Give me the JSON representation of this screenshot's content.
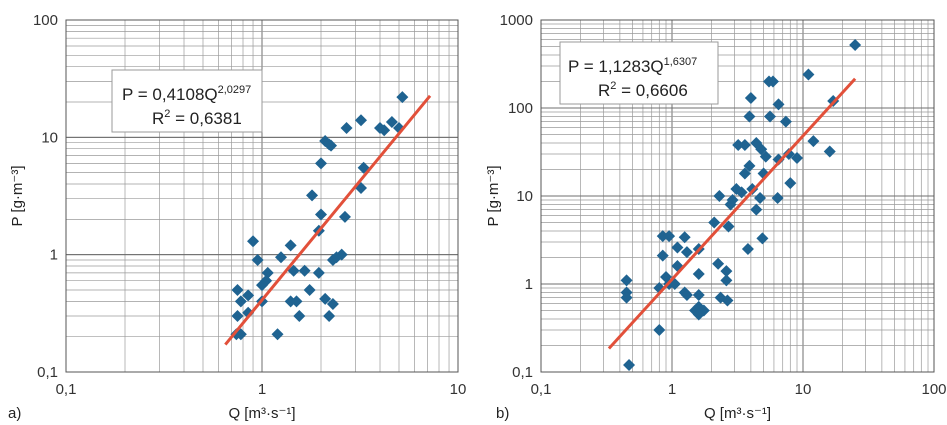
{
  "panel_labels": [
    "a)",
    "b)"
  ],
  "chart_data": [
    {
      "type": "scatter",
      "panel": "a)",
      "xlabel": "Q [m³·s⁻¹]",
      "ylabel": "P [g·m⁻³]",
      "x_scale": "log",
      "y_scale": "log",
      "xlim": [
        0.1,
        10
      ],
      "ylim": [
        0.1,
        100
      ],
      "x_ticks": [
        "0,1",
        "1",
        "10"
      ],
      "y_ticks": [
        "0,1",
        "1",
        "10",
        "100"
      ],
      "grid": true,
      "equation": {
        "base": "P = 0,4108Q",
        "exp": "2,0297",
        "r2_label": "R",
        "r2_sup": "2",
        "r2_value": " = 0,6381"
      },
      "trend": {
        "a": 0.4108,
        "b": 2.0297,
        "x_range": [
          0.65,
          7.2
        ]
      },
      "points": [
        [
          5.2,
          22
        ],
        [
          4.6,
          13.5
        ],
        [
          4.2,
          11.5
        ],
        [
          4.0,
          12
        ],
        [
          3.2,
          14
        ],
        [
          2.7,
          12
        ],
        [
          5.0,
          12
        ],
        [
          2.1,
          9.3
        ],
        [
          2.25,
          8.5
        ],
        [
          2.2,
          8.7
        ],
        [
          3.3,
          5.5
        ],
        [
          2.0,
          6
        ],
        [
          3.2,
          3.7
        ],
        [
          1.8,
          3.2
        ],
        [
          2.0,
          2.2
        ],
        [
          2.65,
          2.1
        ],
        [
          1.95,
          1.6
        ],
        [
          1.4,
          1.2
        ],
        [
          2.55,
          1.0
        ],
        [
          2.3,
          0.9
        ],
        [
          2.4,
          0.95
        ],
        [
          1.25,
          0.95
        ],
        [
          0.95,
          0.9
        ],
        [
          0.9,
          1.3
        ],
        [
          1.65,
          0.73
        ],
        [
          1.45,
          0.73
        ],
        [
          1.95,
          0.7
        ],
        [
          1.07,
          0.7
        ],
        [
          1.05,
          0.6
        ],
        [
          1.0,
          0.55
        ],
        [
          0.75,
          0.5
        ],
        [
          1.75,
          0.5
        ],
        [
          0.85,
          0.45
        ],
        [
          2.1,
          0.42
        ],
        [
          1.0,
          0.4
        ],
        [
          1.4,
          0.4
        ],
        [
          1.5,
          0.4
        ],
        [
          0.78,
          0.4
        ],
        [
          2.3,
          0.38
        ],
        [
          0.85,
          0.32
        ],
        [
          2.2,
          0.3
        ],
        [
          0.75,
          0.3
        ],
        [
          1.55,
          0.3
        ],
        [
          1.2,
          0.21
        ],
        [
          0.78,
          0.21
        ],
        [
          0.74,
          0.21
        ]
      ]
    },
    {
      "type": "scatter",
      "panel": "b)",
      "xlabel": "Q [m³·s⁻¹]",
      "ylabel": "P [g·m⁻³]",
      "x_scale": "log",
      "y_scale": "log",
      "xlim": [
        0.1,
        100
      ],
      "ylim": [
        0.1,
        1000
      ],
      "x_ticks": [
        "0,1",
        "1",
        "10",
        "100"
      ],
      "y_ticks": [
        "0,1",
        "1",
        "10",
        "100",
        "1000"
      ],
      "grid": true,
      "equation": {
        "base": "P = 1,1283Q",
        "exp": "1,6307",
        "r2_label": "R",
        "r2_sup": "2",
        "r2_value": " = 0,6606"
      },
      "trend": {
        "a": 1.1283,
        "b": 1.6307,
        "x_range": [
          0.33,
          25
        ]
      },
      "points": [
        [
          25,
          520
        ],
        [
          11,
          240
        ],
        [
          5.5,
          200
        ],
        [
          5.9,
          200
        ],
        [
          17,
          120
        ],
        [
          6.5,
          110
        ],
        [
          4.0,
          130
        ],
        [
          3.9,
          80
        ],
        [
          5.6,
          80
        ],
        [
          7.4,
          70
        ],
        [
          3.2,
          38
        ],
        [
          3.6,
          38
        ],
        [
          4.4,
          40
        ],
        [
          4.8,
          34
        ],
        [
          12,
          42
        ],
        [
          16,
          32
        ],
        [
          5.2,
          28
        ],
        [
          7.8,
          30
        ],
        [
          9.0,
          27
        ],
        [
          6.5,
          26
        ],
        [
          3.9,
          22
        ],
        [
          3.6,
          18
        ],
        [
          5.0,
          18
        ],
        [
          2.3,
          10
        ],
        [
          2.9,
          9
        ],
        [
          3.1,
          12
        ],
        [
          3.4,
          11
        ],
        [
          4.1,
          12
        ],
        [
          2.8,
          8
        ],
        [
          4.7,
          9.5
        ],
        [
          6.4,
          9.5
        ],
        [
          8.0,
          14
        ],
        [
          4.4,
          7
        ],
        [
          2.1,
          5
        ],
        [
          2.7,
          4.5
        ],
        [
          0.85,
          3.5
        ],
        [
          0.95,
          3.5
        ],
        [
          1.25,
          3.4
        ],
        [
          1.6,
          2.5
        ],
        [
          1.1,
          2.6
        ],
        [
          1.3,
          2.3
        ],
        [
          3.8,
          2.5
        ],
        [
          4.9,
          3.3
        ],
        [
          2.25,
          1.7
        ],
        [
          0.85,
          2.1
        ],
        [
          1.1,
          1.6
        ],
        [
          2.6,
          1.4
        ],
        [
          1.6,
          1.3
        ],
        [
          0.45,
          1.1
        ],
        [
          0.9,
          1.2
        ],
        [
          0.95,
          1.0
        ],
        [
          1.05,
          1.0
        ],
        [
          2.6,
          1.1
        ],
        [
          0.8,
          0.9
        ],
        [
          1.25,
          0.8
        ],
        [
          0.45,
          0.8
        ],
        [
          0.45,
          0.7
        ],
        [
          1.3,
          0.75
        ],
        [
          1.6,
          0.75
        ],
        [
          2.35,
          0.7
        ],
        [
          2.65,
          0.65
        ],
        [
          1.6,
          0.55
        ],
        [
          1.5,
          0.5
        ],
        [
          1.75,
          0.5
        ],
        [
          1.6,
          0.45
        ],
        [
          0.8,
          0.3
        ],
        [
          0.47,
          0.12
        ]
      ]
    }
  ]
}
